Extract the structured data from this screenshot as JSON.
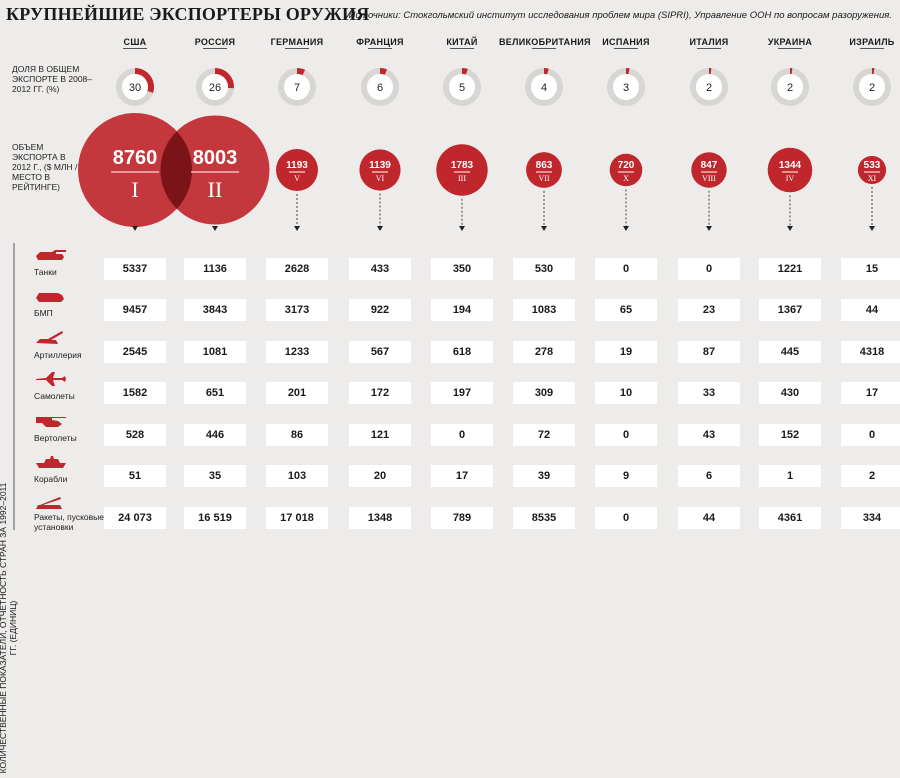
{
  "title": "КРУПНЕЙШИЕ ЭКСПОРТЕРЫ ОРУЖИЯ",
  "sources": "Источники: Стокгольмский институт исследования проблем мира (SIPRI), Управление ООН по вопросам разоружения.",
  "labels": {
    "share": "ДОЛЯ В ОБЩЕМ ЭКСПОРТЕ В 2008–2012 ГГ. (%)",
    "volume": "ОБЪЕМ ЭКСПОРТА В 2012 Г., ($ МЛН / МЕСТО В РЕЙТИНГЕ)",
    "vertical": "КОЛИЧЕСТВЕННЫЕ ПОКАЗАТЕЛИ, ОТЧЕТНОСТЬ СТРАН ЗА 1992–2011 ГГ. (ЕДИНИЦ)"
  },
  "colors": {
    "accent": "#c0272d",
    "dark": "#7a1418",
    "ring": "#d8d6d3",
    "cell": "#ffffff"
  },
  "icons": [
    "tank-icon",
    "ifv-icon",
    "artillery-icon",
    "aircraft-icon",
    "helicopter-icon",
    "ship-icon",
    "missile-launcher-icon"
  ],
  "chart_data": {
    "type": "table",
    "countries": [
      "США",
      "РОССИЯ",
      "ГЕРМАНИЯ",
      "ФРАНЦИЯ",
      "КИТАЙ",
      "ВЕЛИКОБРИТАНИЯ",
      "ИСПАНИЯ",
      "ИТАЛИЯ",
      "УКРАИНА",
      "ИЗРАИЛЬ"
    ],
    "share_percent": [
      30,
      26,
      7,
      6,
      5,
      4,
      3,
      2,
      2,
      2
    ],
    "export_2012_musd": [
      8760,
      8003,
      1193,
      1139,
      1783,
      863,
      720,
      847,
      1344,
      533
    ],
    "export_2012_display": [
      "8760",
      "8003",
      "1193",
      "1139",
      "1783",
      "863",
      "720",
      "847",
      "1344",
      "533"
    ],
    "rank": [
      "I",
      "II",
      "V",
      "VI",
      "III",
      "VII",
      "X",
      "VIII",
      "IV",
      "XI"
    ],
    "categories": [
      "Танки",
      "БМП",
      "Артиллерия",
      "Самолеты",
      "Вертолеты",
      "Корабли",
      "Ракеты, пусковые установки"
    ],
    "units": [
      [
        "5337",
        "1136",
        "2628",
        "433",
        "350",
        "530",
        "0",
        "0",
        "1221",
        "15"
      ],
      [
        "9457",
        "3843",
        "3173",
        "922",
        "194",
        "1083",
        "65",
        "23",
        "1367",
        "44"
      ],
      [
        "2545",
        "1081",
        "1233",
        "567",
        "618",
        "278",
        "19",
        "87",
        "445",
        "4318"
      ],
      [
        "1582",
        "651",
        "201",
        "172",
        "197",
        "309",
        "10",
        "33",
        "430",
        "17"
      ],
      [
        "528",
        "446",
        "86",
        "121",
        "0",
        "72",
        "0",
        "43",
        "152",
        "0"
      ],
      [
        "51",
        "35",
        "103",
        "20",
        "17",
        "39",
        "9",
        "6",
        "1",
        "2"
      ],
      [
        "24 073",
        "16 519",
        "17 018",
        "1348",
        "789",
        "8535",
        "0",
        "44",
        "4361",
        "334"
      ]
    ]
  }
}
